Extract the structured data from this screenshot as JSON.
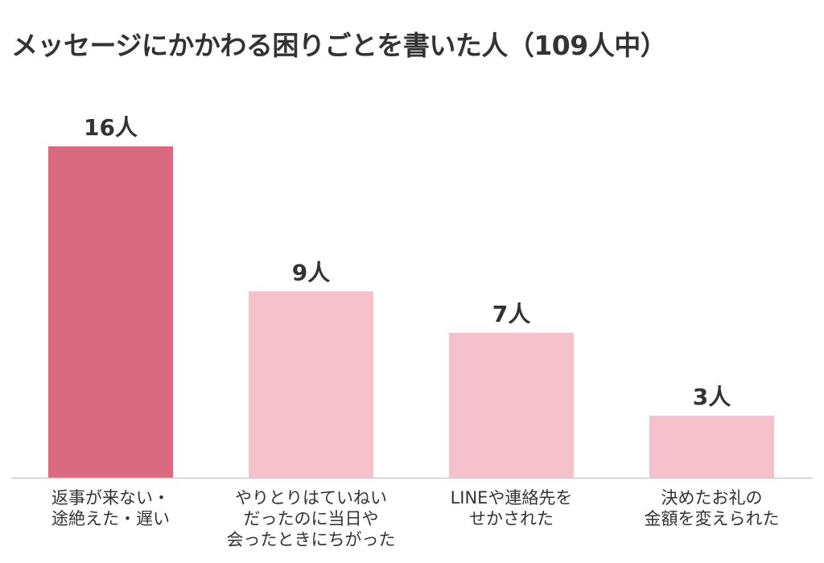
{
  "chart_data": {
    "type": "bar",
    "title": "メッセージにかかわる困りごとを書いた人（109人中）",
    "categories": [
      [
        "返事が来ない・",
        "途絶えた・遅い"
      ],
      [
        "やりとりはていねい",
        "だったのに当日や",
        "会ったときにちがった"
      ],
      [
        "LINEや連絡先を",
        "せかされた"
      ],
      [
        "決めたお礼の",
        "金額を変えられた"
      ]
    ],
    "values": [
      16,
      9,
      7,
      3
    ],
    "value_labels": [
      "16人",
      "9人",
      "7人",
      "3人"
    ],
    "highlight_color": "#d96a80",
    "base_color": "#f4c1cc",
    "axis_color": "#cccccc",
    "ylim": [
      0,
      16
    ],
    "grid": false,
    "legend": "none"
  }
}
